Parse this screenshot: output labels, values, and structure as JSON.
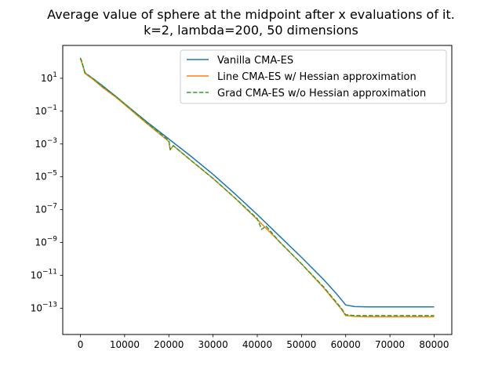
{
  "chart_data": {
    "type": "line",
    "title": "Average value of sphere at the midpoint after x evaluations of it.",
    "subtitle": "k=2, lambda=200, 50 dimensions",
    "xlabel": "",
    "ylabel": "",
    "xlim": [
      -4000,
      84000
    ],
    "ylim_log10": [
      -14.6,
      3.0
    ],
    "yscale": "log",
    "grid": false,
    "legend_position": "top-right",
    "x_ticks": [
      0,
      10000,
      20000,
      30000,
      40000,
      50000,
      60000,
      70000,
      80000
    ],
    "x_tick_labels": [
      "0",
      "10000",
      "20000",
      "30000",
      "40000",
      "50000",
      "60000",
      "70000",
      "80000"
    ],
    "y_ticks_log10": [
      1,
      -1,
      -3,
      -5,
      -7,
      -9,
      -11,
      -13
    ],
    "y_tick_labels": [
      {
        "base": "10",
        "exp": "1"
      },
      {
        "base": "10",
        "exp": "−1"
      },
      {
        "base": "10",
        "exp": "−3"
      },
      {
        "base": "10",
        "exp": "−5"
      },
      {
        "base": "10",
        "exp": "−7"
      },
      {
        "base": "10",
        "exp": "−9"
      },
      {
        "base": "10",
        "exp": "−11"
      },
      {
        "base": "10",
        "exp": "−13"
      }
    ],
    "series": [
      {
        "name": "Vanilla CMA-ES",
        "color": "#1f77b4",
        "dash": "solid",
        "x": [
          0,
          400,
          1000,
          1500,
          3000,
          5000,
          8000,
          10000,
          15000,
          20000,
          25000,
          30000,
          35000,
          40000,
          45000,
          50000,
          55000,
          58000,
          60000,
          62000,
          65000,
          70000,
          75000,
          80000
        ],
        "log10y": [
          2.2,
          1.9,
          1.35,
          1.22,
          0.95,
          0.55,
          -0.1,
          -0.55,
          -1.65,
          -2.7,
          -3.75,
          -4.85,
          -6.05,
          -7.3,
          -8.6,
          -9.9,
          -11.25,
          -12.15,
          -12.8,
          -12.9,
          -12.92,
          -12.92,
          -12.92,
          -12.92
        ]
      },
      {
        "name": "Line CMA-ES w/ Hessian approximation",
        "color": "#ff7f0e",
        "dash": "solid",
        "x": [
          0,
          400,
          1000,
          1500,
          3000,
          5000,
          8000,
          10000,
          15000,
          20000,
          20300,
          21000,
          25000,
          30000,
          35000,
          40000,
          45000,
          50000,
          55000,
          57000,
          59000,
          60000,
          62000,
          65000,
          70000,
          75000,
          80000
        ],
        "log10y": [
          2.2,
          1.9,
          1.3,
          1.2,
          0.9,
          0.45,
          -0.15,
          -0.6,
          -1.75,
          -2.85,
          -3.35,
          -3.1,
          -4.0,
          -5.1,
          -6.3,
          -7.6,
          -8.95,
          -10.3,
          -11.75,
          -12.4,
          -13.05,
          -13.45,
          -13.5,
          -13.52,
          -13.52,
          -13.52,
          -13.52
        ]
      },
      {
        "name": "Grad CMA-ES w/o Hessian approximation",
        "color": "#2ca02c",
        "dash": "dashed",
        "x": [
          0,
          400,
          1000,
          1500,
          3000,
          5000,
          8000,
          10000,
          15000,
          20000,
          20300,
          21000,
          25000,
          30000,
          35000,
          40000,
          41000,
          42000,
          45000,
          50000,
          55000,
          57000,
          59000,
          60000,
          62000,
          65000,
          70000,
          75000,
          80000
        ],
        "log10y": [
          2.25,
          1.95,
          1.35,
          1.25,
          0.95,
          0.5,
          -0.1,
          -0.55,
          -1.7,
          -2.8,
          -3.35,
          -3.1,
          -4.0,
          -5.1,
          -6.3,
          -7.55,
          -8.2,
          -8.0,
          -8.95,
          -10.3,
          -11.7,
          -12.35,
          -13.0,
          -13.4,
          -13.45,
          -13.45,
          -13.45,
          -13.45,
          -13.45
        ]
      }
    ]
  }
}
